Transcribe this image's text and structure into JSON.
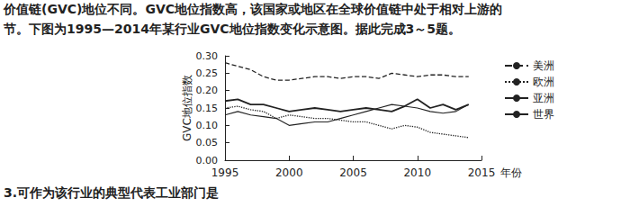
{
  "header": {
    "lines": [
      "价值链(GVC)地位不同。GVC地位指数高，该国家或地区在全球价值链中处于相对上游的",
      "节。下图为1995—2014年某行业GVC地位指数变化示意图。据此完成3～5题。"
    ]
  },
  "chart_data": {
    "type": "line",
    "x_label": "年份",
    "y_label": "GVC地位指数",
    "x": [
      1995,
      1996,
      1997,
      1998,
      1999,
      2000,
      2001,
      2002,
      2003,
      2004,
      2005,
      2006,
      2007,
      2008,
      2009,
      2010,
      2011,
      2012,
      2013,
      2014
    ],
    "series": [
      {
        "name": "美洲",
        "color": "#222222",
        "line_style": "dashed",
        "values": [
          0.28,
          0.27,
          0.26,
          0.24,
          0.23,
          0.23,
          0.235,
          0.24,
          0.24,
          0.235,
          0.24,
          0.24,
          0.235,
          0.25,
          0.245,
          0.24,
          0.245,
          0.245,
          0.24,
          0.24
        ]
      },
      {
        "name": "欧洲",
        "color": "#222222",
        "line_style": "dotted",
        "values": [
          0.15,
          0.155,
          0.145,
          0.14,
          0.12,
          0.13,
          0.125,
          0.12,
          0.12,
          0.115,
          0.11,
          0.11,
          0.1,
          0.09,
          0.1,
          0.095,
          0.08,
          0.075,
          0.07,
          0.065
        ]
      },
      {
        "name": "亚洲",
        "color": "#222222",
        "line_style": "solid",
        "values": [
          0.17,
          0.175,
          0.16,
          0.16,
          0.15,
          0.14,
          0.145,
          0.15,
          0.145,
          0.14,
          0.145,
          0.15,
          0.145,
          0.14,
          0.155,
          0.175,
          0.15,
          0.16,
          0.145,
          0.16
        ]
      },
      {
        "name": "世界",
        "color": "#222222",
        "line_style": "solid",
        "values": [
          0.13,
          0.14,
          0.13,
          0.125,
          0.12,
          0.1,
          0.105,
          0.11,
          0.11,
          0.12,
          0.13,
          0.14,
          0.15,
          0.16,
          0.155,
          0.15,
          0.14,
          0.135,
          0.14,
          0.16
        ]
      }
    ],
    "xlim": [
      1995,
      2015
    ],
    "xticks": [
      1995,
      2000,
      2005,
      2010,
      2015
    ],
    "ylim": [
      0,
      0.3
    ],
    "yticks": [
      {
        "value": 0,
        "label": "0.00"
      },
      {
        "value": 0.05,
        "label": "0.05"
      },
      {
        "value": 0.1,
        "label": "0.10"
      },
      {
        "value": 0.15,
        "label": "0.15"
      },
      {
        "value": 0.2,
        "label": "0.20"
      },
      {
        "value": 0.25,
        "label": "0.25"
      },
      {
        "value": 0.3,
        "label": "0.30"
      }
    ],
    "grid": false,
    "legend": "right"
  },
  "question": "3.可作为该行业的典型代表工业部门是"
}
